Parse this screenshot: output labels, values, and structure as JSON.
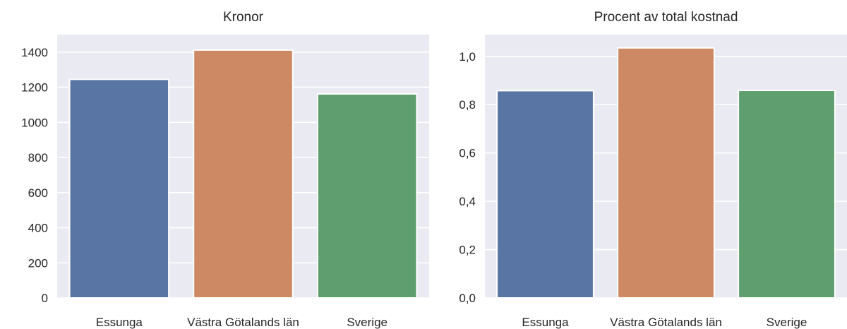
{
  "chart_data": [
    {
      "type": "bar",
      "title": "Kronor",
      "categories": [
        "Essunga",
        "Västra Götalands län",
        "Sverige"
      ],
      "values": [
        1245,
        1412,
        1162
      ],
      "colors": [
        "#5875a4",
        "#cc8963",
        "#5f9e6e"
      ],
      "ylim": [
        0,
        1500
      ],
      "yticks": [
        0,
        200,
        400,
        600,
        800,
        1000,
        1200,
        1400
      ],
      "ytick_labels": [
        "0",
        "200",
        "400",
        "600",
        "800",
        "1000",
        "1200",
        "1400"
      ],
      "xlabel": "",
      "ylabel": "",
      "grid": true,
      "legend": "none"
    },
    {
      "type": "bar",
      "title": "Procent av total kostnad",
      "categories": [
        "Essunga",
        "Västra Götalands län",
        "Sverige"
      ],
      "values": [
        0.858,
        1.035,
        0.859
      ],
      "colors": [
        "#5875a4",
        "#cc8963",
        "#5f9e6e"
      ],
      "ylim": [
        0,
        1.09
      ],
      "yticks": [
        0,
        0.2,
        0.4,
        0.6,
        0.8,
        1.0
      ],
      "ytick_labels": [
        "0,0",
        "0,2",
        "0,4",
        "0,6",
        "0,8",
        "1,0"
      ],
      "xlabel": "",
      "ylabel": "",
      "grid": true,
      "legend": "none"
    }
  ]
}
